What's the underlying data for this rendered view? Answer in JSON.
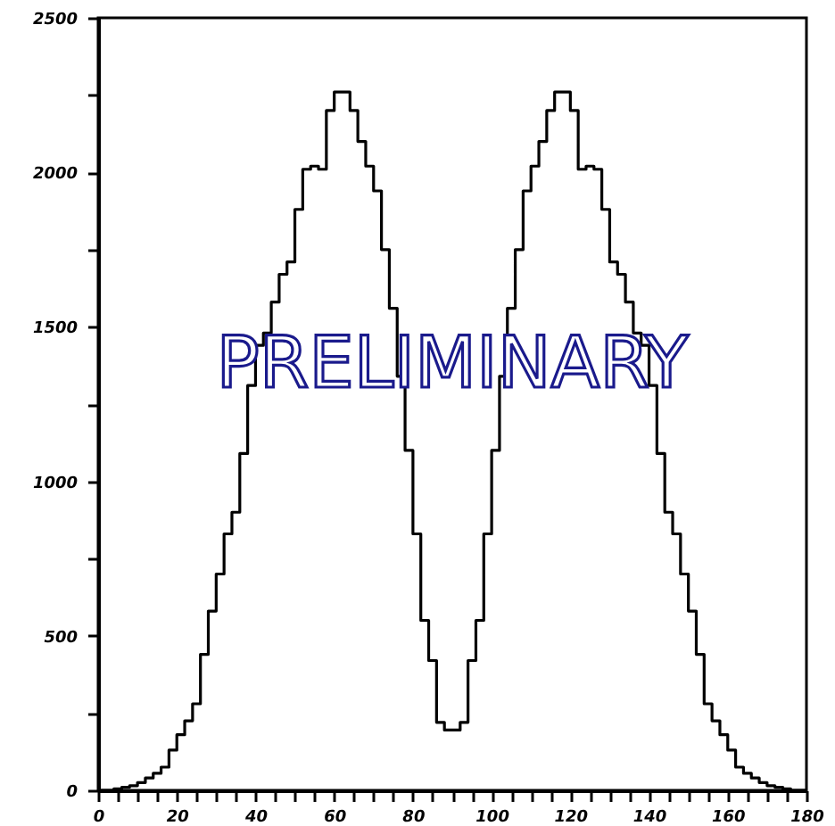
{
  "chart_data": {
    "type": "histogram",
    "bins": [
      0,
      2,
      4,
      6,
      8,
      10,
      12,
      14,
      16,
      18,
      20,
      22,
      24,
      26,
      28,
      30,
      32,
      34,
      36,
      38,
      40,
      42,
      44,
      46,
      48,
      50,
      52,
      54,
      56,
      58,
      60,
      62,
      64,
      66,
      68,
      70,
      72,
      74,
      76,
      78,
      80,
      82,
      84,
      86,
      88,
      90,
      92,
      94,
      96,
      98,
      100,
      102,
      104,
      106,
      108,
      110,
      112,
      114,
      116,
      118,
      120,
      122,
      124,
      126,
      128,
      130,
      132,
      134,
      136,
      138,
      140,
      142,
      144,
      146,
      148,
      150,
      152,
      154,
      156,
      158,
      160,
      162,
      164,
      166,
      168,
      170,
      172,
      174,
      176,
      178,
      180
    ],
    "values": [
      0,
      0,
      5,
      10,
      15,
      25,
      40,
      55,
      75,
      130,
      180,
      225,
      280,
      440,
      580,
      700,
      830,
      900,
      1090,
      1310,
      1440,
      1480,
      1580,
      1670,
      1710,
      1880,
      2010,
      2020,
      2010,
      2200,
      2260,
      2260,
      2200,
      2100,
      2020,
      1940,
      1750,
      1560,
      1340,
      1100,
      830,
      550,
      420,
      220,
      195,
      195,
      220,
      420,
      550,
      830,
      1100,
      1340,
      1560,
      1750,
      1940,
      2020,
      2100,
      2200,
      2260,
      2260,
      2200,
      2010,
      2020,
      2010,
      1880,
      1710,
      1670,
      1580,
      1480,
      1440,
      1310,
      1090,
      900,
      830,
      700,
      580,
      440,
      280,
      225,
      180,
      130,
      75,
      55,
      40,
      25,
      15,
      10,
      5,
      0,
      0
    ],
    "xlim": [
      0,
      180
    ],
    "xticks": [
      0,
      {
        "value": 5,
        "label": null
      },
      {
        "value": 10,
        "label": null
      },
      {
        "value": 15,
        "label": null
      },
      20,
      {
        "value": 25,
        "label": null
      },
      {
        "value": 30,
        "label": null
      },
      {
        "value": 35,
        "label": null
      },
      40,
      {
        "value": 45,
        "label": null
      },
      {
        "value": 50,
        "label": null
      },
      {
        "value": 55,
        "label": null
      },
      60,
      {
        "value": 65,
        "label": null
      },
      {
        "value": 70,
        "label": null
      },
      {
        "value": 75,
        "label": null
      },
      80,
      {
        "value": 85,
        "label": null
      },
      {
        "value": 90,
        "label": null
      },
      {
        "value": 95,
        "label": null
      },
      100,
      {
        "value": 105,
        "label": null
      },
      {
        "value": 110,
        "label": null
      },
      {
        "value": 115,
        "label": null
      },
      120,
      {
        "value": 125,
        "label": null
      },
      {
        "value": 130,
        "label": null
      },
      {
        "value": 135,
        "label": null
      },
      140,
      {
        "value": 145,
        "label": null
      },
      {
        "value": 150,
        "label": null
      },
      {
        "value": 155,
        "label": null
      },
      160,
      {
        "value": 165,
        "label": null
      },
      {
        "value": 170,
        "label": null
      },
      {
        "value": 175,
        "label": null
      },
      180
    ],
    "ylim": [
      0,
      2500
    ],
    "yticks": [
      0,
      {
        "value": 250,
        "label": null
      },
      500,
      {
        "value": 750,
        "label": null
      },
      1000,
      {
        "value": 1250,
        "label": null
      },
      1500,
      {
        "value": 1750,
        "label": null
      },
      2000,
      {
        "value": 2250,
        "label": null
      },
      2500
    ],
    "color": "#000000",
    "annotations": [
      "PRELIMINARY"
    ]
  }
}
